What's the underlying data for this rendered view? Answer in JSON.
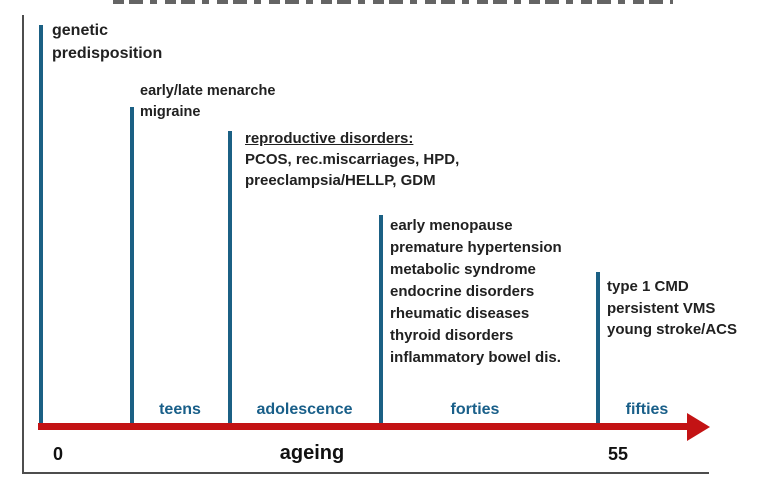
{
  "figure": {
    "axis": {
      "zero_label": "0",
      "end_label": "55",
      "axis_label": "ageing"
    },
    "stages": [
      {
        "label": "teens"
      },
      {
        "label": "adolescence"
      },
      {
        "label": "forties"
      },
      {
        "label": "fifties"
      }
    ],
    "milestones": [
      {
        "id": "birth",
        "lines": [
          "genetic",
          "predisposition"
        ]
      },
      {
        "id": "teens",
        "lines": [
          "early/late menarche",
          "migraine"
        ]
      },
      {
        "id": "adolescence",
        "heading": "reproductive disorders:",
        "lines": [
          "PCOS, rec.miscarriages, HPD,",
          "preeclampsia/HELLP, GDM"
        ]
      },
      {
        "id": "forties",
        "lines": [
          "early menopause",
          "premature hypertension",
          "metabolic syndrome",
          "endocrine disorders",
          "rheumatic diseases",
          "thyroid disorders",
          "inflammatory bowel dis."
        ]
      },
      {
        "id": "fifties",
        "lines": [
          "type 1 CMD",
          "persistent VMS",
          "young stroke/ACS"
        ]
      }
    ],
    "colors": {
      "event_line_blue": "#1b6084",
      "stage_label_blue": "#195f89",
      "arrow_red": "#c31314",
      "body_text": "#212121",
      "frame_gray": "#4d4d4d"
    }
  }
}
